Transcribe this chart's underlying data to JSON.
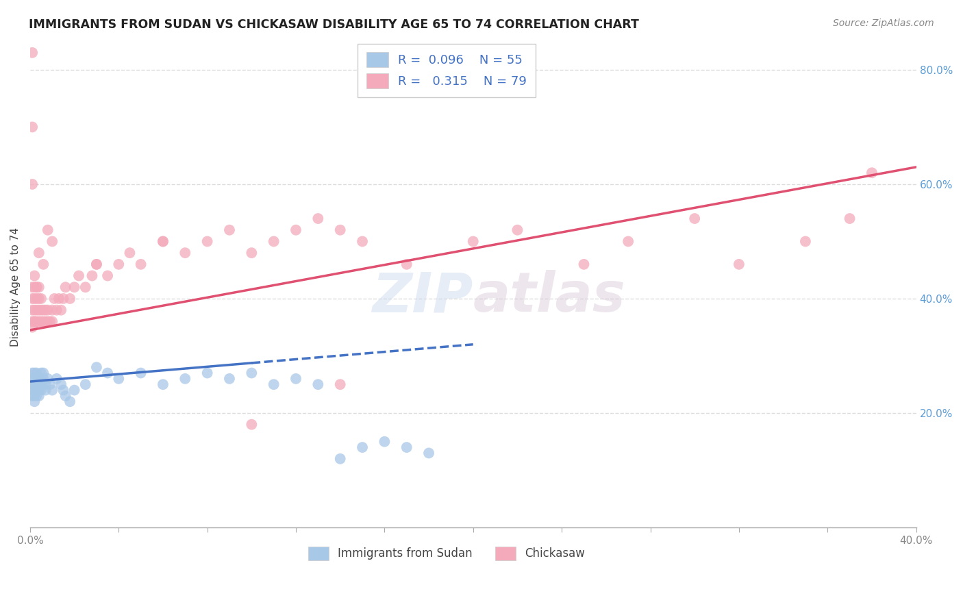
{
  "title": "IMMIGRANTS FROM SUDAN VS CHICKASAW DISABILITY AGE 65 TO 74 CORRELATION CHART",
  "source": "Source: ZipAtlas.com",
  "ylabel": "Disability Age 65 to 74",
  "xlim": [
    0.0,
    0.4
  ],
  "ylim": [
    0.0,
    0.84
  ],
  "xtick_labels": [
    "0.0%",
    "",
    "",
    "",
    "",
    "",
    "",
    "",
    "",
    "40.0%"
  ],
  "xtick_vals": [
    0.0,
    0.04,
    0.08,
    0.12,
    0.16,
    0.2,
    0.24,
    0.28,
    0.32,
    0.4
  ],
  "ytick_labels": [
    "20.0%",
    "40.0%",
    "60.0%",
    "80.0%"
  ],
  "ytick_vals": [
    0.2,
    0.4,
    0.6,
    0.8
  ],
  "legend1_R": "0.096",
  "legend1_N": "55",
  "legend2_R": "0.315",
  "legend2_N": "79",
  "blue_color": "#A8C8E8",
  "pink_color": "#F4AABB",
  "blue_line_color": "#4472C4",
  "pink_line_color": "#E05070",
  "legend_R_color": "#4472C4",
  "background_color": "#FFFFFF",
  "grid_color": "#DDDDDD",
  "blue_x": [
    0.001,
    0.001,
    0.001,
    0.001,
    0.001,
    0.002,
    0.002,
    0.002,
    0.002,
    0.002,
    0.002,
    0.003,
    0.003,
    0.003,
    0.003,
    0.003,
    0.004,
    0.004,
    0.004,
    0.004,
    0.005,
    0.005,
    0.005,
    0.005,
    0.006,
    0.006,
    0.007,
    0.007,
    0.008,
    0.009,
    0.01,
    0.012,
    0.014,
    0.015,
    0.016,
    0.018,
    0.02,
    0.025,
    0.03,
    0.035,
    0.04,
    0.05,
    0.06,
    0.07,
    0.08,
    0.09,
    0.1,
    0.11,
    0.12,
    0.13,
    0.14,
    0.15,
    0.16,
    0.17,
    0.18
  ],
  "blue_y": [
    0.27,
    0.26,
    0.25,
    0.24,
    0.23,
    0.27,
    0.26,
    0.25,
    0.24,
    0.23,
    0.22,
    0.27,
    0.26,
    0.25,
    0.24,
    0.23,
    0.26,
    0.25,
    0.24,
    0.23,
    0.27,
    0.26,
    0.25,
    0.24,
    0.27,
    0.26,
    0.25,
    0.24,
    0.26,
    0.25,
    0.24,
    0.26,
    0.25,
    0.24,
    0.23,
    0.22,
    0.24,
    0.25,
    0.28,
    0.27,
    0.26,
    0.27,
    0.25,
    0.26,
    0.27,
    0.26,
    0.27,
    0.25,
    0.26,
    0.25,
    0.12,
    0.14,
    0.15,
    0.14,
    0.13
  ],
  "pink_x": [
    0.001,
    0.001,
    0.001,
    0.001,
    0.001,
    0.002,
    0.002,
    0.002,
    0.002,
    0.002,
    0.003,
    0.003,
    0.003,
    0.003,
    0.004,
    0.004,
    0.004,
    0.004,
    0.005,
    0.005,
    0.005,
    0.006,
    0.006,
    0.007,
    0.007,
    0.008,
    0.008,
    0.009,
    0.01,
    0.01,
    0.011,
    0.012,
    0.013,
    0.014,
    0.015,
    0.016,
    0.018,
    0.02,
    0.022,
    0.025,
    0.028,
    0.03,
    0.035,
    0.04,
    0.045,
    0.05,
    0.06,
    0.07,
    0.08,
    0.09,
    0.1,
    0.11,
    0.12,
    0.13,
    0.14,
    0.15,
    0.17,
    0.2,
    0.22,
    0.25,
    0.27,
    0.3,
    0.32,
    0.35,
    0.37,
    0.38,
    0.14,
    0.1,
    0.06,
    0.03,
    0.01,
    0.008,
    0.006,
    0.004,
    0.003,
    0.002,
    0.001,
    0.001,
    0.001
  ],
  "pink_y": [
    0.36,
    0.38,
    0.4,
    0.42,
    0.35,
    0.36,
    0.38,
    0.4,
    0.42,
    0.44,
    0.36,
    0.38,
    0.4,
    0.42,
    0.36,
    0.38,
    0.4,
    0.42,
    0.36,
    0.38,
    0.4,
    0.36,
    0.38,
    0.36,
    0.38,
    0.36,
    0.38,
    0.36,
    0.36,
    0.38,
    0.4,
    0.38,
    0.4,
    0.38,
    0.4,
    0.42,
    0.4,
    0.42,
    0.44,
    0.42,
    0.44,
    0.46,
    0.44,
    0.46,
    0.48,
    0.46,
    0.5,
    0.48,
    0.5,
    0.52,
    0.48,
    0.5,
    0.52,
    0.54,
    0.52,
    0.5,
    0.46,
    0.5,
    0.52,
    0.46,
    0.5,
    0.54,
    0.46,
    0.5,
    0.54,
    0.62,
    0.25,
    0.18,
    0.5,
    0.46,
    0.5,
    0.52,
    0.46,
    0.48,
    0.42,
    0.36,
    0.83,
    0.7,
    0.6
  ]
}
